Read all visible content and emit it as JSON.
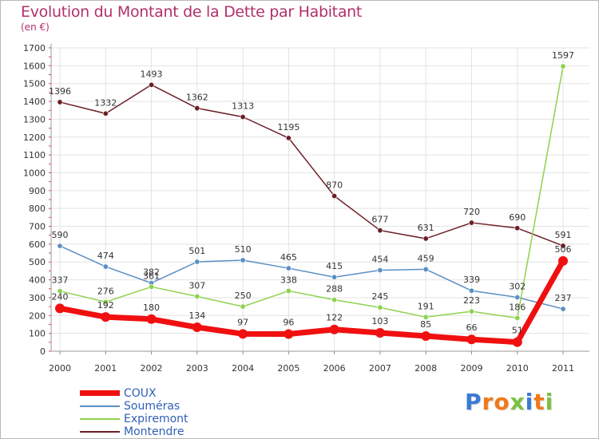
{
  "title": "Evolution du Montant de la Dette par Habitant",
  "subtitle": "(en €)",
  "logo": {
    "letters": [
      "P",
      "r",
      "o",
      "x",
      "i",
      "t",
      "i"
    ],
    "colors": [
      "#3a7ad6",
      "#f07a1a",
      "#f07a1a",
      "#7ac142",
      "#3a7ad6",
      "#f07a1a",
      "#7ac142"
    ]
  },
  "chart_data": {
    "type": "line",
    "title": "Evolution du Montant de la Dette par Habitant",
    "ylabel": "(en €)",
    "xlabel": "",
    "x": [
      "2000",
      "2001",
      "2002",
      "2003",
      "2004",
      "2005",
      "2006",
      "2007",
      "2008",
      "2009",
      "2010",
      "2011"
    ],
    "ylim": [
      0,
      1700
    ],
    "yticks": [
      0,
      100,
      200,
      300,
      400,
      500,
      600,
      700,
      800,
      900,
      1000,
      1100,
      1200,
      1300,
      1400,
      1500,
      1600,
      1700
    ],
    "legend_position": "bottom-left",
    "series": [
      {
        "name": "Montendre",
        "color": "#6b1f25",
        "values": [
          1396,
          1332,
          1493,
          1362,
          1313,
          1195,
          870,
          677,
          631,
          720,
          690,
          591
        ]
      },
      {
        "name": "Souméras",
        "color": "#5a8fc5",
        "values": [
          590,
          474,
          382,
          501,
          510,
          465,
          415,
          454,
          459,
          339,
          302,
          237
        ]
      },
      {
        "name": "Expiremont",
        "color": "#8ed24e",
        "values": [
          337,
          276,
          361,
          307,
          250,
          338,
          288,
          245,
          191,
          223,
          186,
          1597
        ]
      },
      {
        "name": "COUX",
        "color": "#f01010",
        "values": [
          240,
          192,
          180,
          134,
          97,
          96,
          122,
          103,
          85,
          66,
          51,
          506
        ]
      }
    ],
    "legend_order": [
      "COUX",
      "Souméras",
      "Expiremont",
      "Montendre"
    ]
  }
}
